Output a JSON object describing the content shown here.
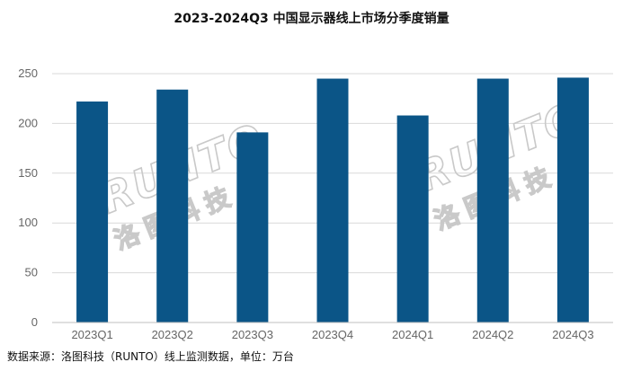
{
  "chart_data": {
    "type": "bar",
    "title": "2023-2024Q3 中国显示器线上市场分季度销量",
    "categories": [
      "2023Q1",
      "2023Q2",
      "2023Q3",
      "2023Q4",
      "2024Q1",
      "2024Q2",
      "2024Q3"
    ],
    "values": [
      222,
      234,
      191,
      245,
      208,
      245,
      246
    ],
    "ylim": [
      0,
      250
    ],
    "yticks": [
      0,
      50,
      100,
      150,
      200,
      250
    ],
    "xlabel": "",
    "ylabel": "",
    "grid": true,
    "legend": "none",
    "bar_color": "#0b5587",
    "grid_color": "#d9d9d9"
  },
  "watermark": {
    "brand": "RUNTO",
    "cn": "洛图科技"
  },
  "source_note": "数据来源：洛图科技（RUNTO）线上监测数据，单位：万台"
}
